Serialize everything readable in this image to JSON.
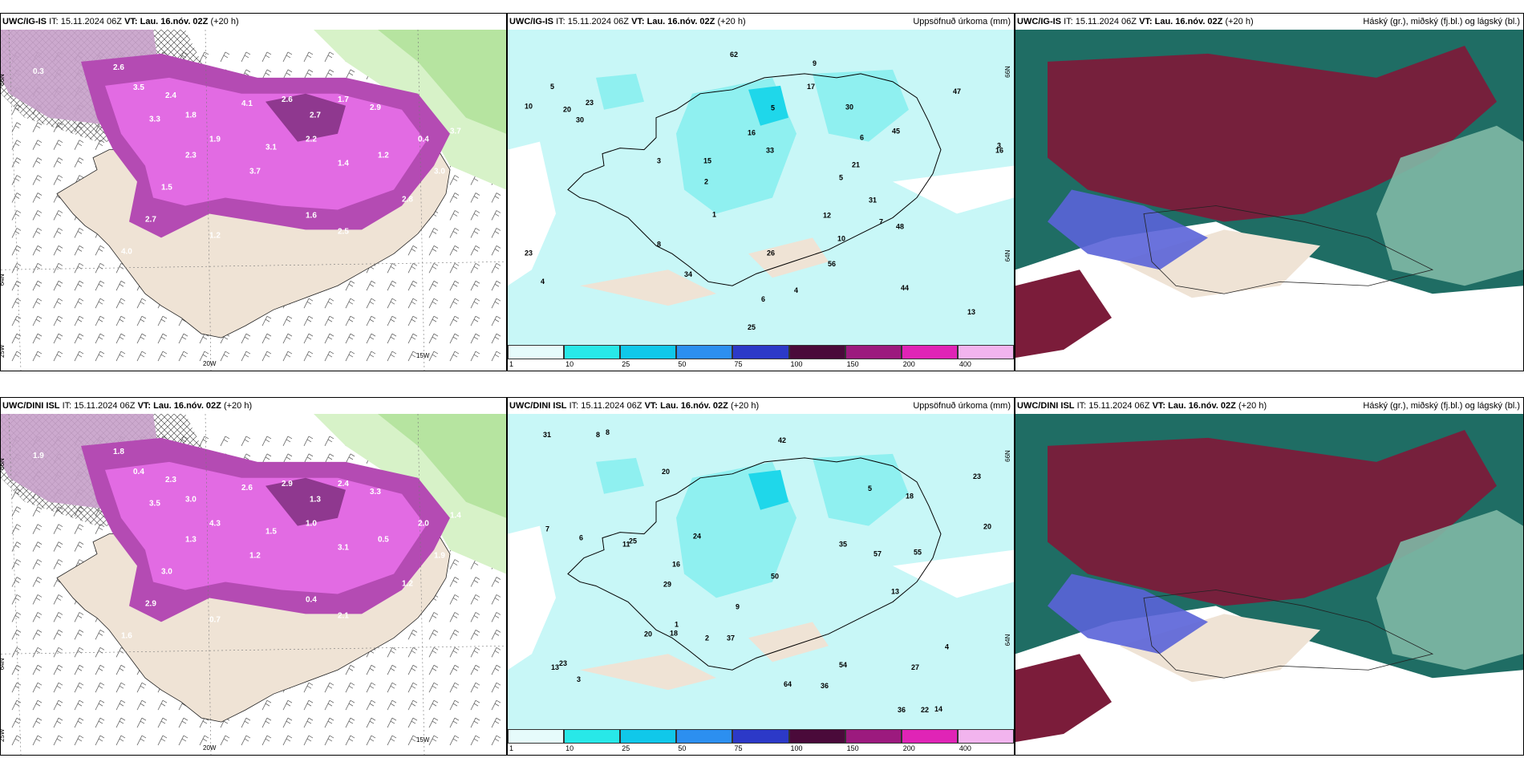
{
  "colors": {
    "sea": "#ffffff",
    "land": "#efe3d5",
    "precip_light": "#c7a0c9",
    "precip_mid": "#b44bb3",
    "precip_strong": "#e26be3",
    "precip_dark": "#7a2c79",
    "green_light": "#d7f2c8",
    "green_mid": "#b6e4a0",
    "accum_bg": "#c8f7f7",
    "accum_mid": "#8ff0f0",
    "accum_high": "#1fd7ea",
    "cloud_high": "#7b1c3a",
    "cloud_mid": "#1f6d64",
    "cloud_low": "#5a63d8"
  },
  "panels": [
    {
      "model": "UWC/IG-IS",
      "it_label": "IT:",
      "it_value": "15.11.2024 06Z",
      "vt_label": "VT:",
      "vt_value": "Lau. 16.nóv. 02Z",
      "lead": "(+20 h)",
      "right_title": "",
      "values": [
        "0.3",
        "2.6",
        "3.5",
        "2.4",
        "3.3",
        "1.8",
        "4.1",
        "2.6",
        "2.7",
        "1.7",
        "2.9",
        "2.2",
        "3.1",
        "1.9",
        "2.3",
        "3.7",
        "1.4",
        "1.2",
        "0.4",
        "3.0",
        "2.7",
        "1.5",
        "1.6",
        "2.5",
        "4.0",
        "2.8",
        "3.7",
        "1.2"
      ],
      "axis": {
        "lat_top": "66N",
        "lat_bot": "64N",
        "lon_left": "25W",
        "lon_mid": "20W",
        "lon_right": "15W"
      }
    },
    {
      "model": "UWC/IG-IS",
      "it_label": "IT:",
      "it_value": "15.11.2024 06Z",
      "vt_label": "VT:",
      "vt_value": "Lau. 16.nóv. 02Z",
      "lead": "(+20 h)",
      "right_title": "Uppsöfnuð úrkoma (mm)",
      "values": [
        "9",
        "6",
        "8",
        "5",
        "3",
        "4",
        "15",
        "17",
        "23",
        "20",
        "12",
        "26",
        "30",
        "62",
        "47",
        "44",
        "34",
        "33",
        "16",
        "30",
        "10",
        "25",
        "48",
        "21",
        "23",
        "16",
        "13",
        "45",
        "56",
        "31",
        "7",
        "5",
        "1",
        "2",
        "4",
        "3",
        "10",
        "5",
        "6"
      ],
      "colorbar": [
        "1",
        "10",
        "25",
        "50",
        "75",
        "100",
        "150",
        "200",
        "400"
      ],
      "axis": {
        "lat_top": "66N",
        "lat_bot": "64N"
      }
    },
    {
      "model": "UWC/IG-IS",
      "it_label": "IT:",
      "it_value": "15.11.2024 06Z",
      "vt_label": "VT:",
      "vt_value": "Lau. 16.nóv. 02Z",
      "lead": "(+20 h)",
      "right_title": "Háský (gr.), miðský (fj.bl.) og lágský (bl.)"
    },
    {
      "model": "UWC/DINI ISL",
      "it_label": "IT:",
      "it_value": "15.11.2024 06Z",
      "vt_label": "VT:",
      "vt_value": "Lau. 16.nóv. 02Z",
      "lead": "(+20 h)",
      "right_title": "",
      "values": [
        "1.9",
        "1.8",
        "0.4",
        "2.3",
        "3.5",
        "3.0",
        "2.6",
        "2.9",
        "1.3",
        "2.4",
        "3.3",
        "1.0",
        "1.5",
        "4.3",
        "1.3",
        "1.2",
        "3.1",
        "0.5",
        "2.0",
        "1.9",
        "2.9",
        "3.0",
        "0.4",
        "2.1",
        "1.6",
        "1.2",
        "1.4",
        "0.7"
      ],
      "axis": {
        "lat_top": "66N",
        "lat_bot": "64N",
        "lon_left": "25W",
        "lon_mid": "20W",
        "lon_right": "15W"
      }
    },
    {
      "model": "UWC/DINI ISL",
      "it_label": "IT:",
      "it_value": "15.11.2024 06Z",
      "vt_label": "VT:",
      "vt_value": "Lau. 16.nóv. 02Z",
      "lead": "(+20 h)",
      "right_title": "Uppsöfnuð úrkoma (mm)",
      "values": [
        "9",
        "11",
        "8",
        "13",
        "14",
        "20",
        "37",
        "29",
        "18",
        "57",
        "55",
        "42",
        "31",
        "36",
        "16",
        "54",
        "50",
        "20",
        "23",
        "24",
        "22",
        "25",
        "36",
        "20",
        "27",
        "35",
        "64",
        "23",
        "18",
        "13",
        "1",
        "2",
        "3",
        "4",
        "5",
        "7",
        "6",
        "8"
      ],
      "colorbar": [
        "1",
        "10",
        "25",
        "50",
        "75",
        "100",
        "150",
        "200",
        "400"
      ],
      "axis": {
        "lat_top": "66N",
        "lat_bot": "64N"
      }
    },
    {
      "model": "UWC/DINI ISL",
      "it_label": "IT:",
      "it_value": "15.11.2024 06Z",
      "vt_label": "VT:",
      "vt_value": "Lau. 16.nóv. 02Z",
      "lead": "(+20 h)",
      "right_title": "Háský (gr.), miðský (fj.bl.) og lágský (bl.)"
    }
  ]
}
